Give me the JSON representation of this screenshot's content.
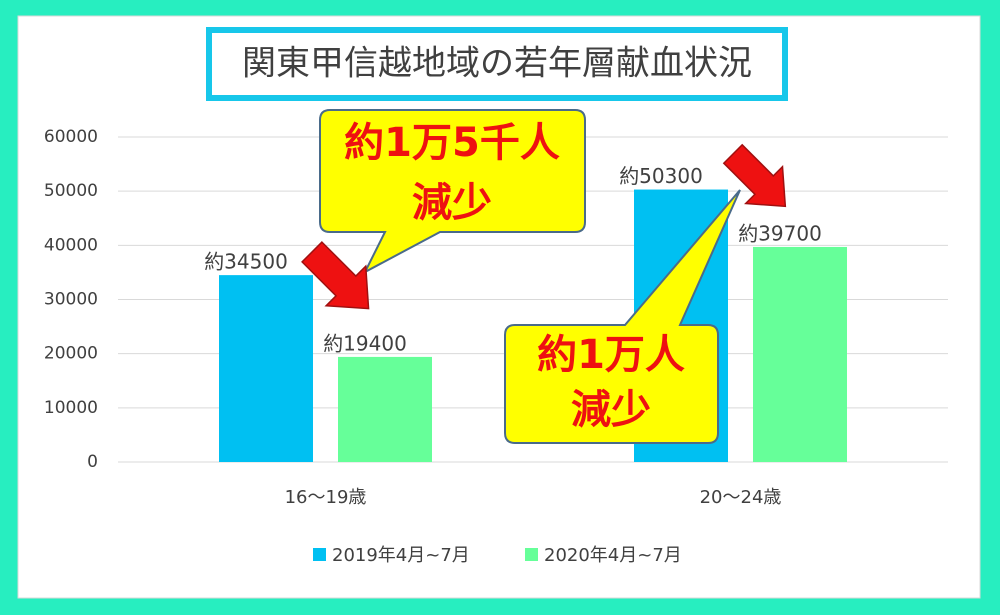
{
  "chart_data": {
    "type": "bar",
    "title": "関東甲信越地域の若年層献血状況",
    "categories": [
      "16〜19歳",
      "20〜24歳"
    ],
    "series": [
      {
        "name": "2019年4月~7月",
        "color": "#00c0f2",
        "values": [
          34500,
          50300
        ],
        "value_labels": [
          "約34500",
          "約50300"
        ]
      },
      {
        "name": "2020年4月~7月",
        "color": "#66ff99",
        "values": [
          19400,
          39700
        ],
        "value_labels": [
          "約19400",
          "約39700"
        ]
      }
    ],
    "ylim": [
      0,
      60000
    ],
    "yticks": [
      0,
      10000,
      20000,
      30000,
      40000,
      50000,
      60000
    ],
    "grid": true,
    "legend": "bottom",
    "annotations": [
      {
        "lines": [
          "約1万5千人",
          "減少"
        ]
      },
      {
        "lines": [
          "約1万人",
          "減少"
        ]
      }
    ]
  }
}
